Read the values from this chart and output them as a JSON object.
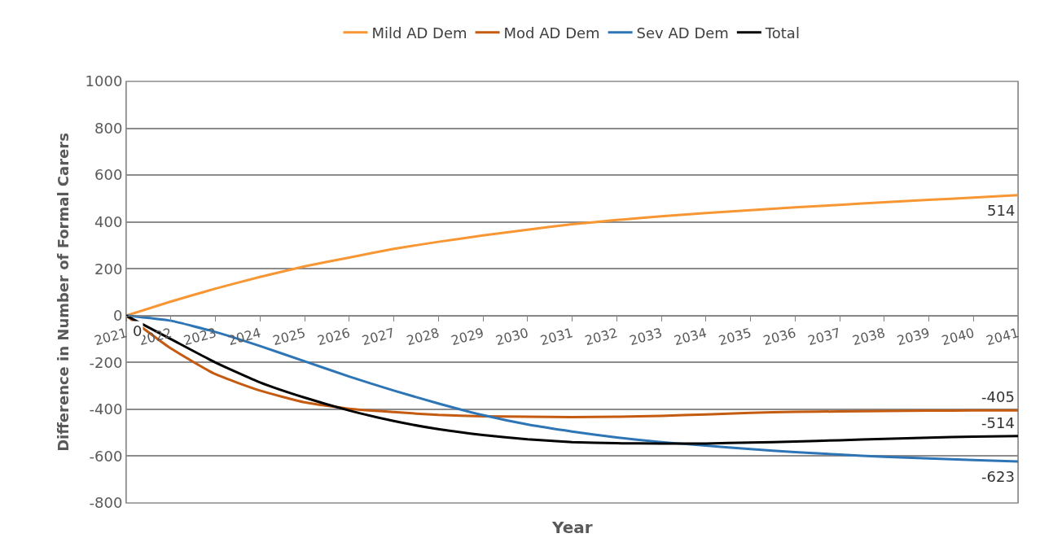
{
  "chart_data": {
    "type": "line",
    "xlabel": "Year",
    "ylabel": "Difference in Number of Formal Carers",
    "categories": [
      "2021",
      "2022",
      "2023",
      "2024",
      "2025",
      "2026",
      "2027",
      "2028",
      "2029",
      "2030",
      "2031",
      "2032",
      "2033",
      "2034",
      "2035",
      "2036",
      "2037",
      "2038",
      "2039",
      "2040",
      "2041"
    ],
    "series": [
      {
        "name": "Mild AD Dem",
        "color": "#f79633",
        "values": [
          0,
          60,
          115,
          165,
          210,
          248,
          285,
          315,
          342,
          367,
          390,
          408,
          424,
          438,
          450,
          462,
          473,
          484,
          494,
          504,
          514
        ],
        "value_labels": [
          null,
          null,
          null,
          null,
          null,
          null,
          null,
          null,
          null,
          null,
          null,
          null,
          null,
          null,
          null,
          null,
          null,
          null,
          null,
          null,
          "514"
        ]
      },
      {
        "name": "Mod AD Dem",
        "color": "#c55a11",
        "values": [
          0,
          -140,
          -250,
          -320,
          -370,
          -398,
          -412,
          -424,
          -430,
          -432,
          -433,
          -432,
          -428,
          -422,
          -415,
          -411,
          -409,
          -407,
          -406,
          -405,
          -405
        ],
        "value_labels": [
          null,
          null,
          null,
          null,
          null,
          null,
          null,
          null,
          null,
          null,
          null,
          null,
          null,
          null,
          null,
          null,
          null,
          null,
          null,
          null,
          "-405"
        ]
      },
      {
        "name": "Sev AD Dem",
        "color": "#2e75b6",
        "values": [
          0,
          -22,
          -70,
          -130,
          -195,
          -260,
          -320,
          -375,
          -425,
          -465,
          -495,
          -520,
          -540,
          -555,
          -570,
          -583,
          -593,
          -603,
          -610,
          -617,
          -623
        ],
        "value_labels": [
          null,
          null,
          null,
          null,
          null,
          null,
          null,
          null,
          null,
          null,
          null,
          null,
          null,
          null,
          null,
          null,
          null,
          null,
          null,
          null,
          "-623"
        ]
      },
      {
        "name": "Total",
        "color": "#000000",
        "values": [
          0,
          -100,
          -200,
          -285,
          -350,
          -405,
          -450,
          -485,
          -510,
          -528,
          -540,
          -545,
          -546,
          -546,
          -542,
          -538,
          -532,
          -526,
          -521,
          -517,
          -514
        ],
        "value_labels": [
          "0",
          null,
          null,
          null,
          null,
          null,
          null,
          null,
          null,
          null,
          null,
          null,
          null,
          null,
          null,
          null,
          null,
          null,
          null,
          null,
          "-514"
        ]
      }
    ],
    "ylim": [
      -800,
      1000
    ],
    "yticks": [
      -800,
      -600,
      -400,
      -200,
      0,
      200,
      400,
      600,
      800,
      1000
    ],
    "grid": "y",
    "legend": "top",
    "marker": "none",
    "line_style": "solid"
  }
}
